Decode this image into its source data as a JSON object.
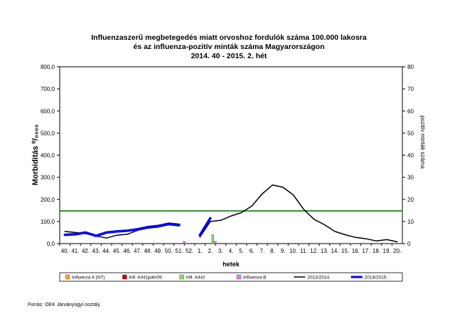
{
  "chart_data": {
    "type": "line",
    "title": [
      "Influenzaszerű megbetegedés miatt orvoshoz fordulók száma 100.000 lakosra",
      "és az influenza-pozitív minták száma Magyarországon",
      "2014. 40 - 2015. 2. hét"
    ],
    "xlabel": "hetek",
    "ylabel": "Morbiditás ⁰/₀₀₀₀",
    "y2label": "pozitív minták száma",
    "ylim": [
      0,
      800
    ],
    "y2lim": [
      0,
      80
    ],
    "yticks": [
      "0,0",
      "100,0",
      "200,0",
      "300,0",
      "400,0",
      "500,0",
      "600,0",
      "700,0",
      "800,0"
    ],
    "y2ticks": [
      "0",
      "10",
      "20",
      "30",
      "40",
      "50",
      "60",
      "70",
      "80"
    ],
    "categories": [
      "40.",
      "41.",
      "42.",
      "43.",
      "44.",
      "45.",
      "46.",
      "47.",
      "48.",
      "49.",
      "50.",
      "51.",
      "52.",
      "1.",
      "2.",
      "3.",
      "4.",
      "5.",
      "6.",
      "7.",
      "8.",
      "9.",
      "10.",
      "11.",
      "12.",
      "13.",
      "14.",
      "15.",
      "16.",
      "17.",
      "18.",
      "19.",
      "20."
    ],
    "epidemic_threshold": 148,
    "series": [
      {
        "name": "2013/2014.",
        "color": "#000000",
        "width": 1.5,
        "values": [
          55,
          50,
          45,
          35,
          25,
          38,
          42,
          60,
          70,
          75,
          85,
          80,
          null,
          30,
          100,
          105,
          125,
          140,
          170,
          225,
          265,
          255,
          220,
          155,
          110,
          85,
          55,
          40,
          28,
          22,
          12,
          18,
          8
        ]
      },
      {
        "name": "2014/2015.",
        "color": "#0000ff",
        "width": 3.5,
        "values": [
          40,
          42,
          50,
          35,
          50,
          55,
          58,
          65,
          75,
          80,
          90,
          85,
          null,
          38,
          115,
          null,
          null,
          null,
          null,
          null,
          null,
          null,
          null,
          null,
          null,
          null,
          null,
          null,
          null,
          null,
          null,
          null,
          null
        ]
      }
    ],
    "bar_series": [
      {
        "name": "Influenza A (NT)",
        "color": "#f5a623",
        "values": []
      },
      {
        "name": "Infl. A/H1pdm09",
        "color": "#cc0000",
        "values": []
      },
      {
        "name": "Infl. A/H3",
        "color": "#8fd46a",
        "points": [
          {
            "x": "2.",
            "y": 4
          }
        ]
      },
      {
        "name": "Influenza B",
        "color": "#e07be0",
        "points": [
          {
            "x": "51.",
            "y": 1
          },
          {
            "x": "2.",
            "y": 1
          }
        ]
      }
    ],
    "legend_position": "bottom"
  },
  "source": "Forrás: OEK Járványügyi osztály"
}
